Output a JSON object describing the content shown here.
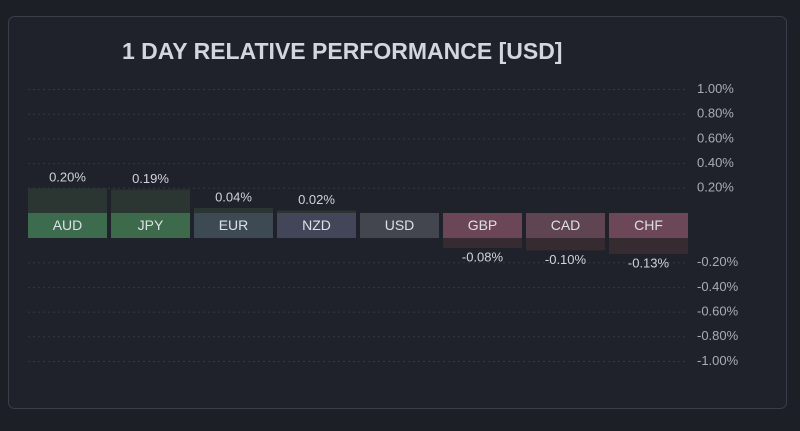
{
  "chart_data": {
    "type": "bar",
    "title": "1 DAY RELATIVE PERFORMANCE  [USD]",
    "categories": [
      "AUD",
      "JPY",
      "EUR",
      "NZD",
      "USD",
      "GBP",
      "CAD",
      "CHF"
    ],
    "values": [
      0.2,
      0.19,
      0.04,
      0.02,
      0,
      -0.08,
      -0.1,
      -0.13
    ],
    "value_labels": [
      "0.20%",
      "0.19%",
      "0.04%",
      "0.02%",
      null,
      "-0.08%",
      "-0.10%",
      "-0.13%"
    ],
    "category_colors": [
      "#3d6b4d",
      "#3c6a4b",
      "#3d4a54",
      "#434658",
      "#43464f",
      "#6a4656",
      "#5f4452",
      "#6c4757"
    ],
    "positive_color": "#2b3532",
    "negative_color": "#372b32",
    "ylim": [
      -1,
      1
    ],
    "yticks": [
      {
        "value": 1,
        "label": "1.00%"
      },
      {
        "value": 0.8,
        "label": "0.80%"
      },
      {
        "value": 0.6,
        "label": "0.60%"
      },
      {
        "value": 0.4,
        "label": "0.40%"
      },
      {
        "value": 0.2,
        "label": "0.20%"
      },
      {
        "value": -0.2,
        "label": "-0.20%"
      },
      {
        "value": -0.4,
        "label": "-0.40%"
      },
      {
        "value": -0.6,
        "label": "-0.60%"
      },
      {
        "value": -0.8,
        "label": "-0.80%"
      },
      {
        "value": -1,
        "label": "-1.00%"
      }
    ],
    "grid": true
  }
}
